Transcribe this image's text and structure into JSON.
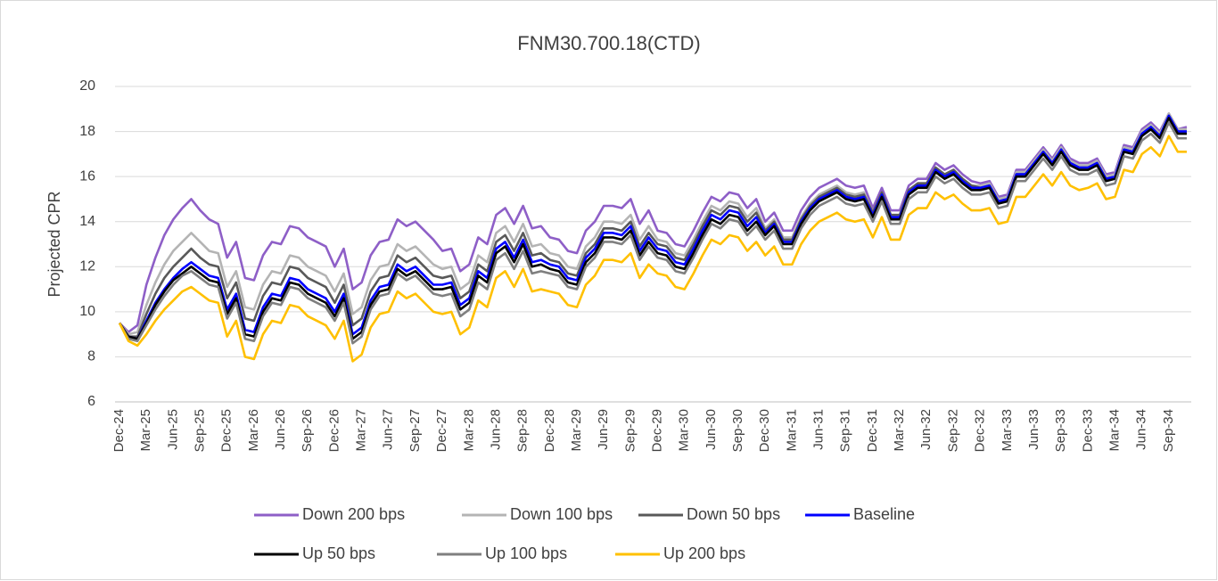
{
  "chart_data": {
    "type": "line",
    "title": "FNM30.700.18(CTD)",
    "y_label": "Projected CPR",
    "ylim": [
      6,
      20
    ],
    "yticks": [
      6,
      8,
      10,
      12,
      14,
      16,
      18,
      20
    ],
    "grid": true,
    "categories": [
      "Dec-24",
      null,
      null,
      "Mar-25",
      null,
      null,
      "Jun-25",
      null,
      null,
      "Sep-25",
      null,
      null,
      "Dec-25",
      null,
      null,
      "Mar-26",
      null,
      null,
      "Jun-26",
      null,
      null,
      "Sep-26",
      null,
      null,
      "Dec-26",
      null,
      null,
      "Mar-27",
      null,
      null,
      "Jun-27",
      null,
      null,
      "Sep-27",
      null,
      null,
      "Dec-27",
      null,
      null,
      "Mar-28",
      null,
      null,
      "Jun-28",
      null,
      null,
      "Sep-28",
      null,
      null,
      "Dec-28",
      null,
      null,
      "Mar-29",
      null,
      null,
      "Jun-29",
      null,
      null,
      "Sep-29",
      null,
      null,
      "Dec-29",
      null,
      null,
      "Mar-30",
      null,
      null,
      "Jun-30",
      null,
      null,
      "Sep-30",
      null,
      null,
      "Dec-30",
      null,
      null,
      "Mar-31",
      null,
      null,
      "Jun-31",
      null,
      null,
      "Sep-31",
      null,
      null,
      "Dec-31",
      null,
      null,
      "Mar-32",
      null,
      null,
      "Jun-32",
      null,
      null,
      "Sep-32",
      null,
      null,
      "Dec-32",
      null,
      null,
      "Mar-33",
      null,
      null,
      "Jun-33",
      null,
      null,
      "Sep-33",
      null,
      null,
      "Dec-33",
      null,
      null,
      "Mar-34",
      null,
      null,
      "Jun-34",
      null,
      null,
      "Sep-34",
      null,
      null
    ],
    "series": [
      {
        "name": "Down 200 bps",
        "color": "#8e5fc7",
        "values": [
          9.5,
          9.1,
          9.4,
          11.2,
          12.4,
          13.4,
          14.1,
          14.6,
          15.0,
          14.5,
          14.1,
          13.9,
          12.4,
          13.1,
          11.5,
          11.4,
          12.5,
          13.1,
          13.0,
          13.8,
          13.7,
          13.3,
          13.1,
          12.9,
          12.0,
          12.8,
          11.0,
          11.3,
          12.5,
          13.1,
          13.2,
          14.1,
          13.8,
          14.0,
          13.6,
          13.2,
          12.7,
          12.8,
          11.8,
          12.1,
          13.3,
          13.0,
          14.3,
          14.6,
          13.9,
          14.7,
          13.7,
          13.8,
          13.3,
          13.2,
          12.7,
          12.6,
          13.6,
          14.0,
          14.7,
          14.7,
          14.6,
          15.0,
          13.9,
          14.5,
          13.6,
          13.5,
          13.0,
          12.9,
          13.6,
          14.4,
          15.1,
          14.9,
          15.3,
          15.2,
          14.6,
          15.0,
          14.0,
          14.4,
          13.6,
          13.6,
          14.5,
          15.1,
          15.5,
          15.7,
          15.9,
          15.6,
          15.5,
          15.6,
          14.6,
          15.5,
          14.5,
          14.5,
          15.6,
          15.9,
          15.9,
          16.6,
          16.3,
          16.5,
          16.1,
          15.8,
          15.7,
          15.8,
          15.1,
          15.2,
          16.3,
          16.3,
          16.8,
          17.3,
          16.8,
          17.4,
          16.8,
          16.6,
          16.6,
          16.8,
          16.1,
          16.2,
          17.4,
          17.3,
          18.1,
          18.4,
          18.0,
          18.8,
          18.1,
          18.2
        ]
      },
      {
        "name": "Down 100 bps",
        "color": "#b4b4b4",
        "values": [
          9.5,
          9.0,
          9.1,
          10.3,
          11.3,
          12.1,
          12.7,
          13.1,
          13.5,
          13.1,
          12.7,
          12.6,
          11.1,
          11.8,
          10.2,
          10.1,
          11.2,
          11.8,
          11.7,
          12.5,
          12.4,
          12.0,
          11.8,
          11.6,
          10.9,
          11.7,
          9.9,
          10.2,
          11.4,
          12.0,
          12.1,
          13.0,
          12.7,
          12.9,
          12.5,
          12.1,
          11.9,
          12.0,
          11.0,
          11.3,
          12.5,
          12.2,
          13.5,
          13.8,
          13.1,
          13.9,
          12.9,
          13.0,
          12.6,
          12.5,
          12.0,
          11.9,
          12.9,
          13.3,
          14.0,
          14.0,
          13.9,
          14.3,
          13.2,
          13.8,
          13.2,
          13.1,
          12.6,
          12.5,
          13.2,
          14.0,
          14.7,
          14.5,
          14.9,
          14.8,
          14.2,
          14.6,
          13.7,
          14.1,
          13.3,
          13.3,
          14.2,
          14.8,
          15.2,
          15.4,
          15.6,
          15.3,
          15.2,
          15.3,
          14.4,
          15.3,
          14.3,
          14.3,
          15.4,
          15.7,
          15.7,
          16.4,
          16.1,
          16.3,
          15.9,
          15.6,
          15.6,
          15.7,
          15.0,
          15.1,
          16.2,
          16.2,
          16.7,
          17.2,
          16.7,
          17.3,
          16.7,
          16.5,
          16.5,
          16.7,
          16.0,
          16.1,
          17.3,
          17.2,
          18.0,
          18.3,
          17.9,
          18.8,
          18.1,
          18.1
        ]
      },
      {
        "name": "Down 50 bps",
        "color": "#595959",
        "values": [
          9.5,
          8.9,
          8.9,
          9.9,
          10.8,
          11.5,
          12.0,
          12.4,
          12.8,
          12.4,
          12.1,
          12.0,
          10.6,
          11.3,
          9.7,
          9.6,
          10.7,
          11.3,
          11.2,
          12.0,
          11.9,
          11.5,
          11.3,
          11.1,
          10.4,
          11.2,
          9.4,
          9.7,
          10.9,
          11.5,
          11.6,
          12.5,
          12.2,
          12.4,
          12.0,
          11.6,
          11.5,
          11.6,
          10.6,
          10.9,
          12.1,
          11.8,
          13.1,
          13.4,
          12.7,
          13.5,
          12.5,
          12.6,
          12.3,
          12.2,
          11.7,
          11.6,
          12.6,
          13.0,
          13.7,
          13.7,
          13.6,
          14.0,
          12.9,
          13.5,
          13.0,
          12.9,
          12.4,
          12.3,
          13.0,
          13.8,
          14.5,
          14.3,
          14.7,
          14.6,
          14.0,
          14.4,
          13.6,
          14.0,
          13.2,
          13.2,
          14.1,
          14.7,
          15.1,
          15.3,
          15.5,
          15.2,
          15.1,
          15.2,
          14.4,
          15.3,
          14.3,
          14.3,
          15.4,
          15.7,
          15.7,
          16.4,
          16.1,
          16.3,
          15.9,
          15.6,
          15.5,
          15.6,
          14.9,
          15.0,
          16.1,
          16.1,
          16.6,
          17.1,
          16.6,
          17.2,
          16.6,
          16.4,
          16.4,
          16.6,
          15.9,
          16.0,
          17.2,
          17.1,
          17.9,
          18.2,
          17.8,
          18.7,
          18.0,
          18.0
        ]
      },
      {
        "name": "Baseline",
        "color": "#0000ff",
        "values": [
          9.5,
          8.9,
          8.8,
          9.6,
          10.4,
          11.0,
          11.5,
          11.9,
          12.2,
          11.9,
          11.6,
          11.5,
          10.1,
          10.8,
          9.2,
          9.1,
          10.2,
          10.8,
          10.7,
          11.5,
          11.4,
          11.0,
          10.8,
          10.6,
          10.0,
          10.8,
          9.0,
          9.3,
          10.5,
          11.1,
          11.2,
          12.1,
          11.8,
          12.0,
          11.6,
          11.2,
          11.2,
          11.3,
          10.3,
          10.6,
          11.8,
          11.5,
          12.8,
          13.1,
          12.4,
          13.2,
          12.2,
          12.3,
          12.1,
          12.0,
          11.5,
          11.4,
          12.4,
          12.8,
          13.5,
          13.5,
          13.4,
          13.8,
          12.7,
          13.3,
          12.8,
          12.7,
          12.2,
          12.1,
          12.8,
          13.6,
          14.3,
          14.1,
          14.5,
          14.4,
          13.8,
          14.2,
          13.5,
          13.9,
          13.1,
          13.1,
          14.0,
          14.6,
          15.0,
          15.2,
          15.4,
          15.1,
          15.0,
          15.1,
          14.3,
          15.2,
          14.2,
          14.2,
          15.3,
          15.6,
          15.6,
          16.3,
          16.0,
          16.2,
          15.8,
          15.5,
          15.5,
          15.6,
          14.9,
          15.0,
          16.1,
          16.1,
          16.6,
          17.1,
          16.6,
          17.2,
          16.6,
          16.4,
          16.4,
          16.6,
          15.9,
          16.0,
          17.2,
          17.1,
          17.9,
          18.2,
          17.8,
          18.7,
          18.0,
          18.0
        ]
      },
      {
        "name": "Up 50 bps",
        "color": "#000000",
        "values": [
          9.5,
          8.9,
          8.8,
          9.5,
          10.3,
          10.9,
          11.4,
          11.7,
          12.0,
          11.7,
          11.4,
          11.3,
          9.9,
          10.6,
          9.0,
          8.9,
          10.0,
          10.6,
          10.5,
          11.3,
          11.2,
          10.8,
          10.6,
          10.4,
          9.8,
          10.6,
          8.8,
          9.1,
          10.3,
          10.9,
          11.0,
          11.9,
          11.6,
          11.8,
          11.4,
          11.0,
          11.0,
          11.1,
          10.1,
          10.4,
          11.6,
          11.3,
          12.6,
          12.9,
          12.2,
          13.0,
          12.0,
          12.1,
          11.9,
          11.8,
          11.3,
          11.2,
          12.2,
          12.6,
          13.3,
          13.3,
          13.2,
          13.6,
          12.5,
          13.1,
          12.6,
          12.5,
          12.0,
          11.9,
          12.6,
          13.4,
          14.1,
          13.9,
          14.3,
          14.2,
          13.6,
          14.0,
          13.4,
          13.8,
          13.0,
          13.0,
          13.9,
          14.5,
          14.9,
          15.1,
          15.3,
          15.0,
          14.9,
          15.0,
          14.2,
          15.1,
          14.1,
          14.1,
          15.2,
          15.5,
          15.5,
          16.2,
          15.9,
          16.1,
          15.7,
          15.4,
          15.4,
          15.5,
          14.8,
          14.9,
          16.0,
          16.0,
          16.5,
          17.0,
          16.5,
          17.1,
          16.5,
          16.3,
          16.3,
          16.5,
          15.8,
          15.9,
          17.1,
          17.0,
          17.8,
          18.1,
          17.7,
          18.6,
          17.9,
          17.9
        ]
      },
      {
        "name": "Up 100 bps",
        "color": "#7f7f7f",
        "values": [
          9.5,
          8.8,
          8.7,
          9.4,
          10.1,
          10.7,
          11.2,
          11.6,
          11.8,
          11.5,
          11.2,
          11.1,
          9.7,
          10.4,
          8.8,
          8.7,
          9.8,
          10.4,
          10.3,
          11.1,
          11.0,
          10.6,
          10.4,
          10.2,
          9.6,
          10.4,
          8.6,
          8.9,
          10.1,
          10.7,
          10.8,
          11.7,
          11.4,
          11.6,
          11.2,
          10.8,
          10.7,
          10.8,
          9.8,
          10.1,
          11.3,
          11.0,
          12.3,
          12.6,
          11.9,
          12.7,
          11.7,
          11.8,
          11.7,
          11.6,
          11.1,
          11.0,
          12.0,
          12.4,
          13.1,
          13.1,
          13.0,
          13.4,
          12.3,
          12.9,
          12.4,
          12.3,
          11.8,
          11.7,
          12.4,
          13.2,
          13.9,
          13.7,
          14.1,
          14.0,
          13.4,
          13.8,
          13.2,
          13.6,
          12.8,
          12.8,
          13.7,
          14.3,
          14.7,
          14.9,
          15.1,
          14.8,
          14.7,
          14.8,
          14.0,
          14.9,
          13.9,
          13.9,
          15.0,
          15.3,
          15.3,
          16.0,
          15.7,
          15.9,
          15.5,
          15.2,
          15.2,
          15.3,
          14.6,
          14.7,
          15.8,
          15.8,
          16.3,
          16.8,
          16.3,
          16.9,
          16.3,
          16.1,
          16.1,
          16.3,
          15.6,
          15.7,
          16.9,
          16.8,
          17.6,
          17.9,
          17.5,
          18.4,
          17.7,
          17.7
        ]
      },
      {
        "name": "Up 200 bps",
        "color": "#ffc000",
        "values": [
          9.5,
          8.7,
          8.5,
          9.0,
          9.6,
          10.1,
          10.5,
          10.9,
          11.1,
          10.8,
          10.5,
          10.4,
          8.9,
          9.6,
          8.0,
          7.9,
          9.0,
          9.6,
          9.5,
          10.3,
          10.2,
          9.8,
          9.6,
          9.4,
          8.8,
          9.6,
          7.8,
          8.1,
          9.3,
          9.9,
          10.0,
          10.9,
          10.6,
          10.8,
          10.4,
          10.0,
          9.9,
          10.0,
          9.0,
          9.3,
          10.5,
          10.2,
          11.5,
          11.8,
          11.1,
          11.9,
          10.9,
          11.0,
          10.9,
          10.8,
          10.3,
          10.2,
          11.2,
          11.6,
          12.3,
          12.3,
          12.2,
          12.6,
          11.5,
          12.1,
          11.7,
          11.6,
          11.1,
          11.0,
          11.7,
          12.5,
          13.2,
          13.0,
          13.4,
          13.3,
          12.7,
          13.1,
          12.5,
          12.9,
          12.1,
          12.1,
          13.0,
          13.6,
          14.0,
          14.2,
          14.4,
          14.1,
          14.0,
          14.1,
          13.3,
          14.2,
          13.2,
          13.2,
          14.3,
          14.6,
          14.6,
          15.3,
          15.0,
          15.2,
          14.8,
          14.5,
          14.5,
          14.6,
          13.9,
          14.0,
          15.1,
          15.1,
          15.6,
          16.1,
          15.6,
          16.2,
          15.6,
          15.4,
          15.5,
          15.7,
          15.0,
          15.1,
          16.3,
          16.2,
          17.0,
          17.3,
          16.9,
          17.8,
          17.1,
          17.1
        ]
      }
    ]
  }
}
